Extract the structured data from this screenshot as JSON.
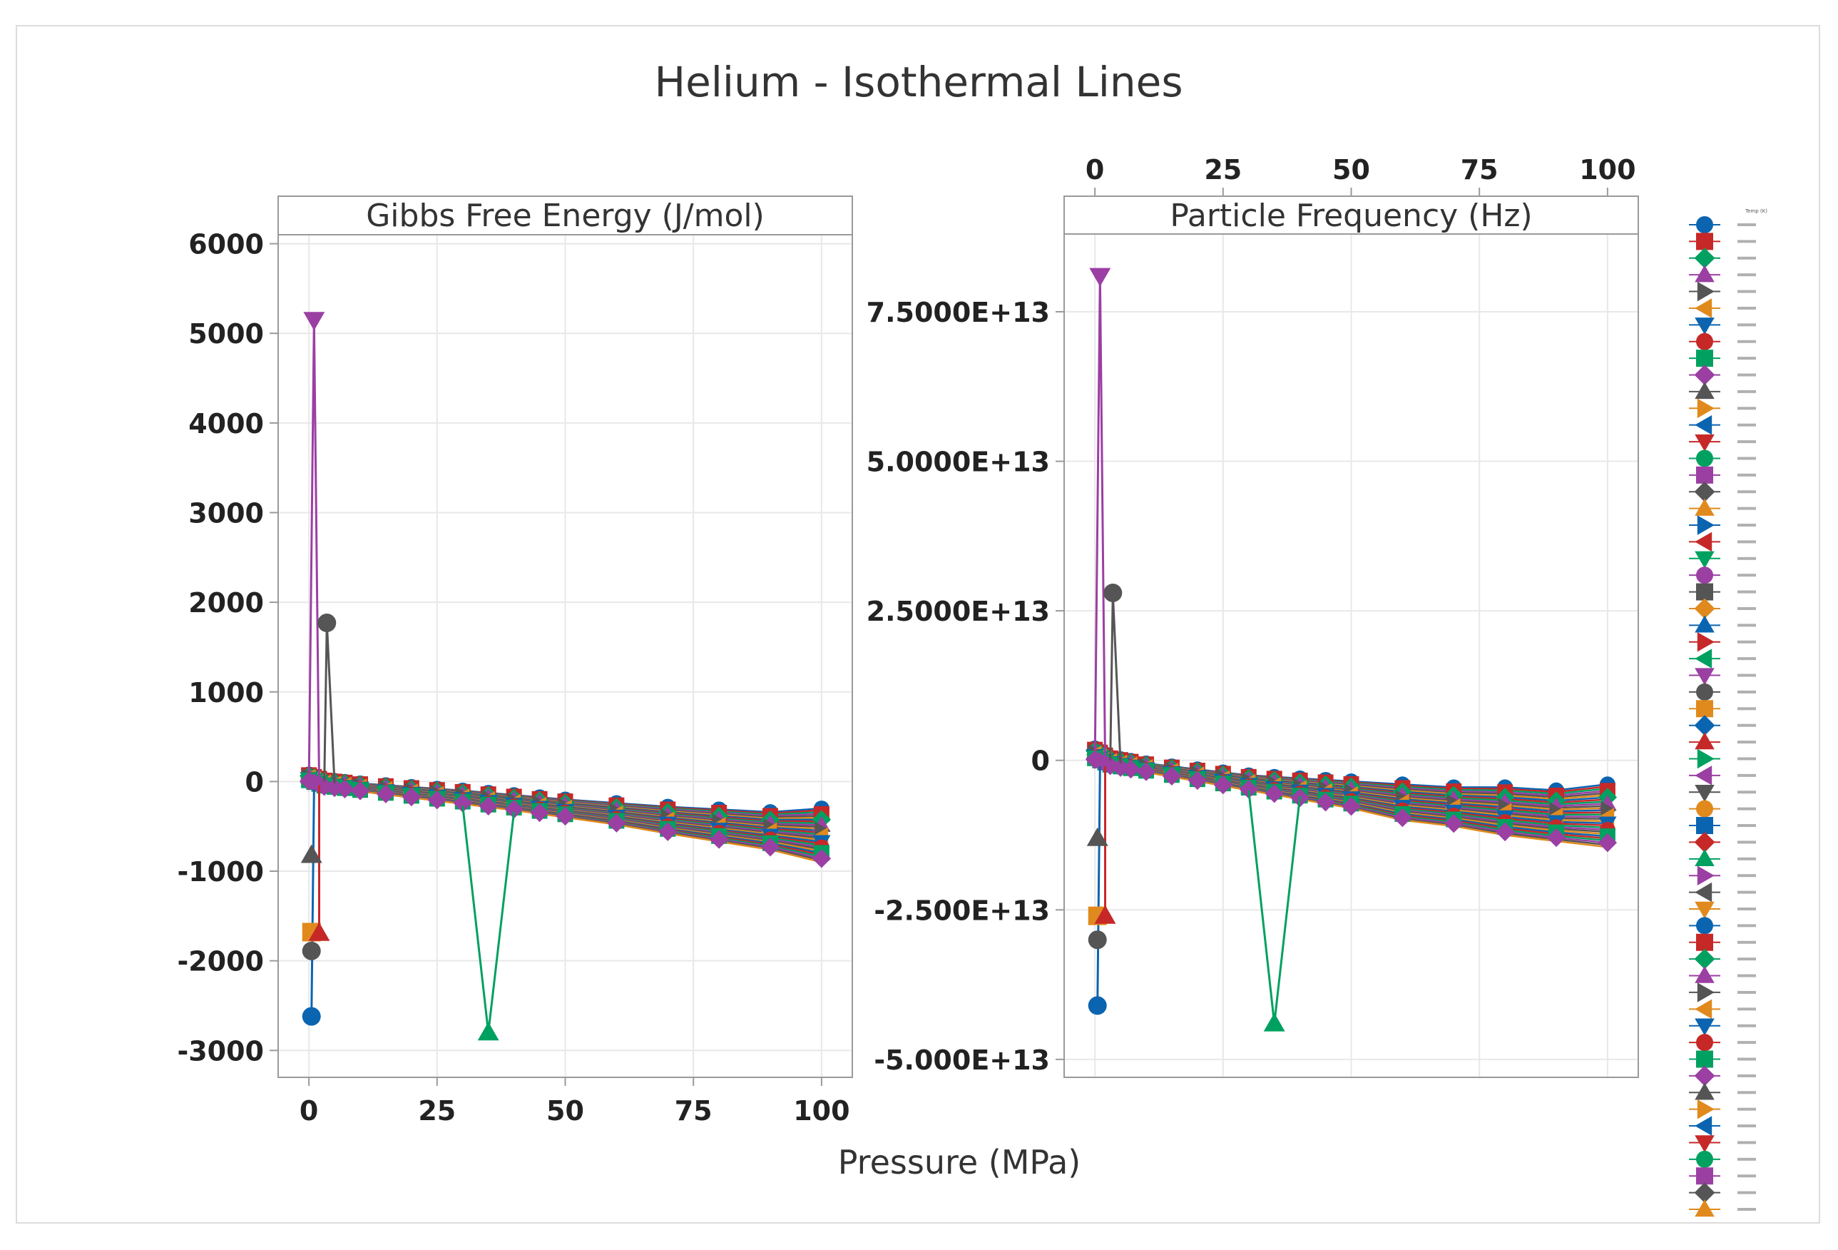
{
  "chart_data": {
    "type": "line",
    "title": "Helium - Isothermal Lines",
    "xlabel": "Pressure (MPa)",
    "x_ticks": [
      "0",
      "25",
      "50",
      "75",
      "100"
    ],
    "xlim": [
      -6,
      106
    ],
    "legend_title": "Temp (K)",
    "legend_position": "right",
    "panels": [
      {
        "id": "gibbs",
        "title": "Gibbs Free Energy (J/mol)",
        "ylim": [
          -3300,
          6100
        ],
        "y_ticks": [
          {
            "value": 6000,
            "label": "6000"
          },
          {
            "value": 5000,
            "label": "5000"
          },
          {
            "value": 4000,
            "label": "4000"
          },
          {
            "value": 3000,
            "label": "3000"
          },
          {
            "value": 2000,
            "label": "2000"
          },
          {
            "value": 1000,
            "label": "1000"
          },
          {
            "value": 0,
            "label": "0"
          },
          {
            "value": -1000,
            "label": "-1000"
          },
          {
            "value": -2000,
            "label": "-2000"
          },
          {
            "value": -3000,
            "label": "-3000"
          }
        ],
        "band_low": [
          [
            0,
            0
          ],
          [
            3,
            -60
          ],
          [
            10,
            -110
          ],
          [
            20,
            -180
          ],
          [
            30,
            -250
          ],
          [
            40,
            -320
          ],
          [
            50,
            -400
          ],
          [
            60,
            -480
          ],
          [
            70,
            -580
          ],
          [
            80,
            -670
          ],
          [
            90,
            -760
          ],
          [
            100,
            -900
          ]
        ],
        "band_high": [
          [
            0,
            80
          ],
          [
            3,
            20
          ],
          [
            10,
            -20
          ],
          [
            20,
            -60
          ],
          [
            30,
            -100
          ],
          [
            40,
            -150
          ],
          [
            50,
            -200
          ],
          [
            60,
            -240
          ],
          [
            70,
            -280
          ],
          [
            80,
            -310
          ],
          [
            90,
            -340
          ],
          [
            100,
            -300
          ]
        ],
        "highlights": [
          {
            "name": "purple spike",
            "color": "#9b3fa3",
            "marker": "tri-down",
            "points": [
              [
                0,
                0
              ],
              [
                1,
                5150
              ],
              [
                2,
                0
              ]
            ]
          },
          {
            "name": "dark spike",
            "color": "#555555",
            "marker": "circle",
            "points": [
              [
                3,
                0
              ],
              [
                3.5,
                1770
              ],
              [
                5,
                -20
              ]
            ]
          },
          {
            "name": "green dip",
            "color": "#00a060",
            "marker": "tri-up",
            "points": [
              [
                30,
                -270
              ],
              [
                35,
                -2800
              ],
              [
                40,
                -340
              ]
            ]
          },
          {
            "name": "blue low",
            "color": "#0b64b0",
            "marker": "circle",
            "points": [
              [
                1,
                -90
              ],
              [
                0.5,
                -2620
              ]
            ]
          },
          {
            "name": "dark low",
            "color": "#555555",
            "marker": "circle",
            "points": [
              [
                0.5,
                -1890
              ]
            ]
          },
          {
            "name": "orange low",
            "color": "#e08a1e",
            "marker": "square",
            "points": [
              [
                0.5,
                -1680
              ]
            ]
          },
          {
            "name": "red low",
            "color": "#c62828",
            "marker": "tri-up",
            "points": [
              [
                2,
                -40
              ],
              [
                2,
                -1690
              ]
            ]
          },
          {
            "name": "gray low",
            "color": "#555555",
            "marker": "tri-up",
            "points": [
              [
                0.5,
                -820
              ]
            ]
          }
        ]
      },
      {
        "id": "frequency",
        "title": "Particle Frequency (Hz)",
        "ylim": [
          -53000000000000.0,
          88000000000000.0
        ],
        "y_ticks": [
          {
            "value": 75000000000000.0,
            "label": "7.5000E+13"
          },
          {
            "value": 50000000000000.0,
            "label": "5.0000E+13"
          },
          {
            "value": 25000000000000.0,
            "label": "2.5000E+13"
          },
          {
            "value": 0,
            "label": "0"
          },
          {
            "value": -25000000000000.0,
            "label": "-2.500E+13"
          },
          {
            "value": -50000000000000.0,
            "label": "-5.000E+13"
          }
        ],
        "band_low": [
          [
            0,
            0
          ],
          [
            3,
            -1000000000000.0
          ],
          [
            10,
            -2000000000000.0
          ],
          [
            20,
            -3500000000000.0
          ],
          [
            30,
            -5000000000000.0
          ],
          [
            40,
            -6500000000000.0
          ],
          [
            50,
            -8000000000000.0
          ],
          [
            60,
            -10000000000000.0
          ],
          [
            70,
            -11000000000000.0
          ],
          [
            80,
            -12500000000000.0
          ],
          [
            90,
            -13500000000000.0
          ],
          [
            100,
            -14500000000000.0
          ]
        ],
        "band_high": [
          [
            0,
            2000000000000.0
          ],
          [
            3,
            500000000000.0
          ],
          [
            10,
            -500000000000.0
          ],
          [
            20,
            -1500000000000.0
          ],
          [
            30,
            -2500000000000.0
          ],
          [
            40,
            -3000000000000.0
          ],
          [
            50,
            -3500000000000.0
          ],
          [
            60,
            -4000000000000.0
          ],
          [
            70,
            -4500000000000.0
          ],
          [
            80,
            -4500000000000.0
          ],
          [
            90,
            -5000000000000.0
          ],
          [
            100,
            -4000000000000.0
          ]
        ],
        "highlights": [
          {
            "name": "purple spike",
            "color": "#9b3fa3",
            "marker": "tri-down",
            "points": [
              [
                0,
                0
              ],
              [
                1,
                81000000000000.0
              ],
              [
                2,
                0
              ]
            ]
          },
          {
            "name": "dark spike",
            "color": "#555555",
            "marker": "circle",
            "points": [
              [
                3,
                0
              ],
              [
                3.5,
                28000000000000.0
              ],
              [
                5,
                -500000000000.0
              ]
            ]
          },
          {
            "name": "green dip",
            "color": "#00a060",
            "marker": "tri-up",
            "points": [
              [
                30,
                -5000000000000.0
              ],
              [
                35,
                -44000000000000.0
              ],
              [
                40,
                -6000000000000.0
              ]
            ]
          },
          {
            "name": "blue low",
            "color": "#0b64b0",
            "marker": "circle",
            "points": [
              [
                1,
                -1000000000000.0
              ],
              [
                0.5,
                -41000000000000.0
              ]
            ]
          },
          {
            "name": "dark low",
            "color": "#555555",
            "marker": "circle",
            "points": [
              [
                0.5,
                -30000000000000.0
              ]
            ]
          },
          {
            "name": "orange low",
            "color": "#e08a1e",
            "marker": "square",
            "points": [
              [
                0.5,
                -26000000000000.0
              ]
            ]
          },
          {
            "name": "red low",
            "color": "#c62828",
            "marker": "tri-up",
            "points": [
              [
                2,
                -1000000000000.0
              ],
              [
                2,
                -26000000000000.0
              ]
            ]
          },
          {
            "name": "gray low",
            "color": "#555555",
            "marker": "tri-up",
            "points": [
              [
                0.5,
                -13000000000000.0
              ]
            ]
          }
        ]
      }
    ],
    "band_pressures": [
      0,
      1,
      2,
      3,
      5,
      7,
      10,
      15,
      20,
      25,
      30,
      35,
      40,
      45,
      50,
      60,
      70,
      80,
      90,
      100
    ],
    "series_colors": [
      "#0b64b0",
      "#c62828",
      "#00a060",
      "#9b3fa3",
      "#555555",
      "#e08a1e"
    ],
    "series_markers": [
      "circle",
      "square",
      "diamond",
      "tri-up",
      "tri-right",
      "tri-left",
      "tri-down"
    ],
    "legend_count": 60
  }
}
